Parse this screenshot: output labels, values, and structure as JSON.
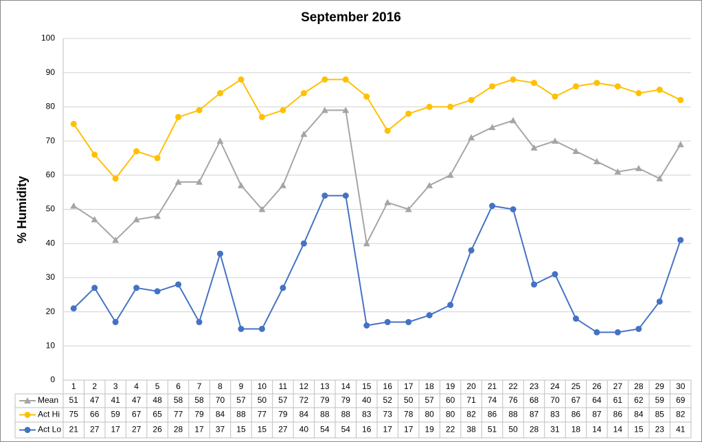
{
  "chart_data": {
    "type": "line",
    "title": "September 2016",
    "y_label": "% Humidity",
    "categories": [
      "1",
      "2",
      "3",
      "4",
      "5",
      "6",
      "7",
      "8",
      "9",
      "10",
      "11",
      "12",
      "13",
      "14",
      "15",
      "16",
      "17",
      "18",
      "19",
      "20",
      "21",
      "22",
      "23",
      "24",
      "25",
      "26",
      "27",
      "28",
      "29",
      "30"
    ],
    "series": [
      {
        "name": "Mean",
        "color": "#a5a5a5",
        "marker": "triangle",
        "values": [
          51,
          47,
          41,
          47,
          48,
          58,
          58,
          70,
          57,
          50,
          57,
          72,
          79,
          79,
          40,
          52,
          50,
          57,
          60,
          71,
          74,
          76,
          68,
          70,
          67,
          64,
          61,
          62,
          59,
          69
        ]
      },
      {
        "name": "Act Hi",
        "color": "#ffc000",
        "marker": "circle",
        "values": [
          75,
          66,
          59,
          67,
          65,
          77,
          79,
          84,
          88,
          77,
          79,
          84,
          88,
          88,
          83,
          73,
          78,
          80,
          80,
          82,
          86,
          88,
          87,
          83,
          86,
          87,
          86,
          84,
          85,
          82
        ]
      },
      {
        "name": "Act Lo",
        "color": "#4472c4",
        "marker": "circle",
        "values": [
          21,
          27,
          17,
          27,
          26,
          28,
          17,
          37,
          15,
          15,
          27,
          40,
          54,
          54,
          16,
          17,
          17,
          19,
          22,
          38,
          51,
          50,
          28,
          31,
          18,
          14,
          14,
          15,
          23,
          41
        ]
      }
    ],
    "ylim": [
      0,
      100
    ],
    "yticks": [
      0,
      10,
      20,
      30,
      40,
      50,
      60,
      70,
      80,
      90,
      100
    ],
    "grid": true,
    "data_table": true
  }
}
